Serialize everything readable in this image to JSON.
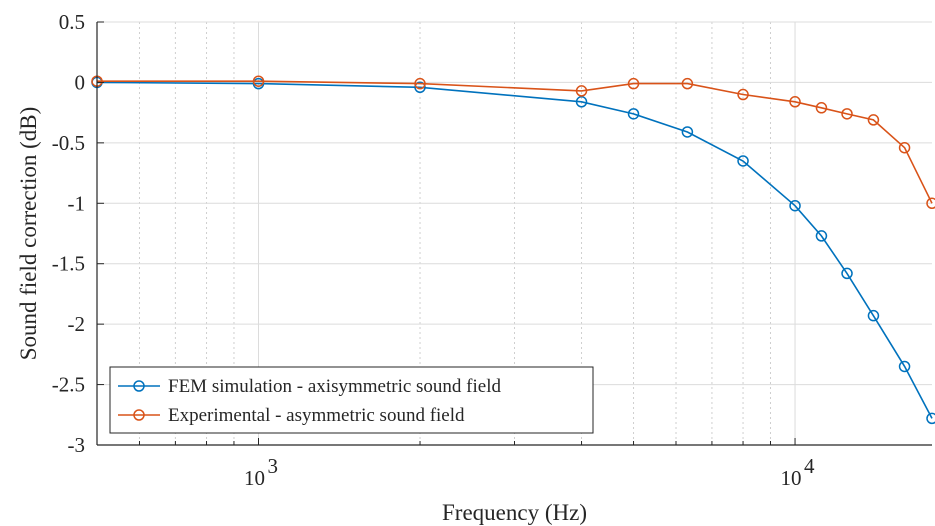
{
  "chart_data": {
    "type": "line",
    "xlabel": "Frequency (Hz)",
    "ylabel": "Sound field correction (dB)",
    "xscale": "log",
    "xlim": [
      500,
      18000
    ],
    "ylim": [
      -3,
      0.5
    ],
    "x_ticks": [
      {
        "value": 1000,
        "base": "10",
        "exp": "3"
      },
      {
        "value": 10000,
        "base": "10",
        "exp": "4"
      }
    ],
    "y_ticks": [
      {
        "value": 0.5,
        "label": "0.5"
      },
      {
        "value": 0,
        "label": "0"
      },
      {
        "value": -0.5,
        "label": "-0.5"
      },
      {
        "value": -1,
        "label": "-1"
      },
      {
        "value": -1.5,
        "label": "-1.5"
      },
      {
        "value": -2,
        "label": "-2"
      },
      {
        "value": -2.5,
        "label": "-2.5"
      },
      {
        "value": -3,
        "label": "-3"
      }
    ],
    "grid": true,
    "minor_grid_x": true,
    "legend_position": "bottom-left",
    "series": [
      {
        "name": "FEM simulation - axisymmetric sound field",
        "color": "#0072BD",
        "marker": "circle",
        "points": [
          [
            500,
            0.0
          ],
          [
            1000,
            -0.01
          ],
          [
            2000,
            -0.04
          ],
          [
            4000,
            -0.16
          ],
          [
            5000,
            -0.26
          ],
          [
            6300,
            -0.41
          ],
          [
            8000,
            -0.65
          ],
          [
            10000,
            -1.02
          ],
          [
            11200,
            -1.27
          ],
          [
            12500,
            -1.58
          ],
          [
            14000,
            -1.93
          ],
          [
            16000,
            -2.35
          ],
          [
            18000,
            -2.78
          ]
        ]
      },
      {
        "name": "Experimental - asymmetric sound field",
        "color": "#D95319",
        "marker": "circle",
        "points": [
          [
            500,
            0.01
          ],
          [
            1000,
            0.01
          ],
          [
            2000,
            -0.01
          ],
          [
            4000,
            -0.07
          ],
          [
            5000,
            -0.01
          ],
          [
            6300,
            -0.01
          ],
          [
            8000,
            -0.1
          ],
          [
            10000,
            -0.16
          ],
          [
            11200,
            -0.21
          ],
          [
            12500,
            -0.26
          ],
          [
            14000,
            -0.31
          ],
          [
            16000,
            -0.54
          ],
          [
            18000,
            -1.0
          ]
        ]
      }
    ]
  }
}
